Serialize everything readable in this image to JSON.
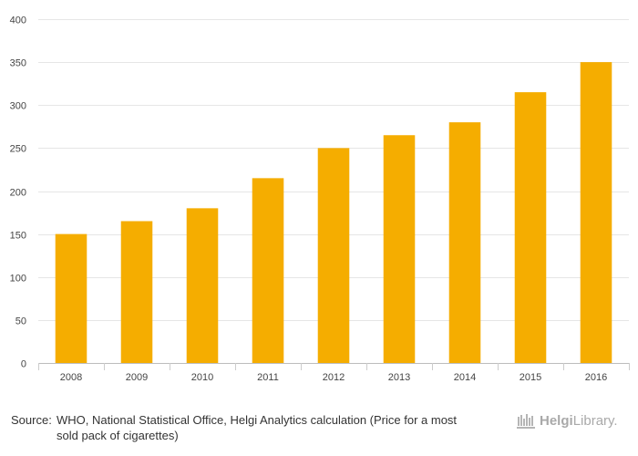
{
  "chart_data": {
    "type": "bar",
    "categories": [
      "2008",
      "2009",
      "2010",
      "2011",
      "2012",
      "2013",
      "2014",
      "2015",
      "2016"
    ],
    "values": [
      150,
      165,
      180,
      215,
      250,
      265,
      280,
      315,
      350
    ],
    "title": "",
    "xlabel": "",
    "ylabel": "",
    "ylim": [
      0,
      400
    ],
    "yticks": [
      0,
      50,
      100,
      150,
      200,
      250,
      300,
      350,
      400
    ],
    "grid": true,
    "bar_color": "#f5ad00"
  },
  "footer": {
    "source_label": "Source:",
    "source_text": "WHO, National Statistical Office, Helgi Analytics calculation (Price for a most sold pack of cigarettes)"
  },
  "logo": {
    "text_part1": "Helgi",
    "text_part2": "Library.",
    "icon": "library-icon"
  }
}
